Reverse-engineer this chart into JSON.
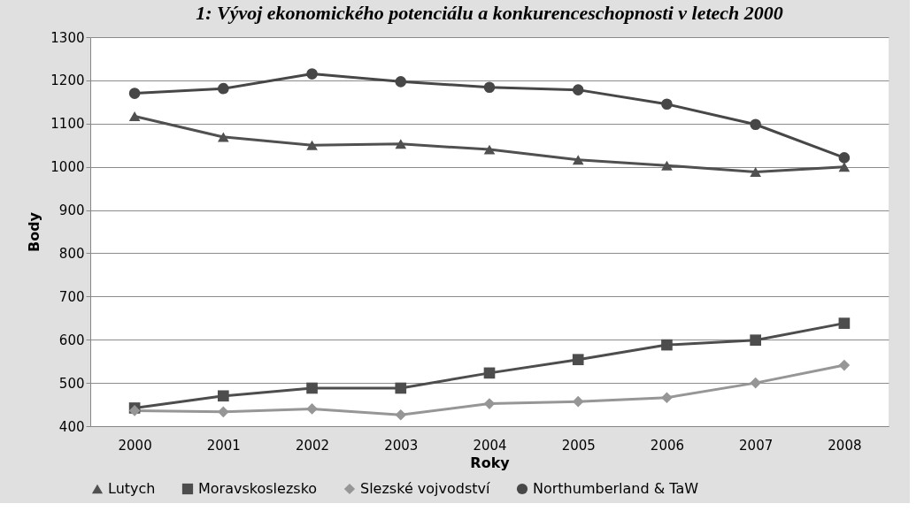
{
  "chart_data": {
    "type": "line",
    "title": "1: Vývoj ekonomického potenciálu a konkurenceschopnosti v letech 2000",
    "xlabel": "Roky",
    "ylabel": "Body",
    "categories": [
      "2000",
      "2001",
      "2002",
      "2003",
      "2004",
      "2005",
      "2006",
      "2007",
      "2008"
    ],
    "ylim": [
      400,
      1300
    ],
    "yticks": [
      400,
      500,
      600,
      700,
      800,
      900,
      1000,
      1100,
      1200,
      1300
    ],
    "grid": "y",
    "legend": "bottom",
    "line_style": "solid",
    "series": [
      {
        "name": "Lutych",
        "color": "#505050",
        "marker": "triangle",
        "values": [
          1117,
          1069,
          1050,
          1053,
          1040,
          1016,
          1003,
          988,
          1000
        ]
      },
      {
        "name": "Moravskoslezsko",
        "color": "#4d4d4d",
        "marker": "square",
        "values": [
          442,
          470,
          488,
          488,
          523,
          554,
          588,
          599,
          638
        ]
      },
      {
        "name": "Slezské vojvodství",
        "color": "#969696",
        "marker": "diamond",
        "values": [
          436,
          433,
          440,
          426,
          452,
          457,
          466,
          500,
          541
        ]
      },
      {
        "name": "Northumberland & TaW",
        "color": "#474747",
        "marker": "circle",
        "values": [
          1170,
          1181,
          1215,
          1197,
          1184,
          1178,
          1145,
          1098,
          1021
        ]
      }
    ]
  }
}
